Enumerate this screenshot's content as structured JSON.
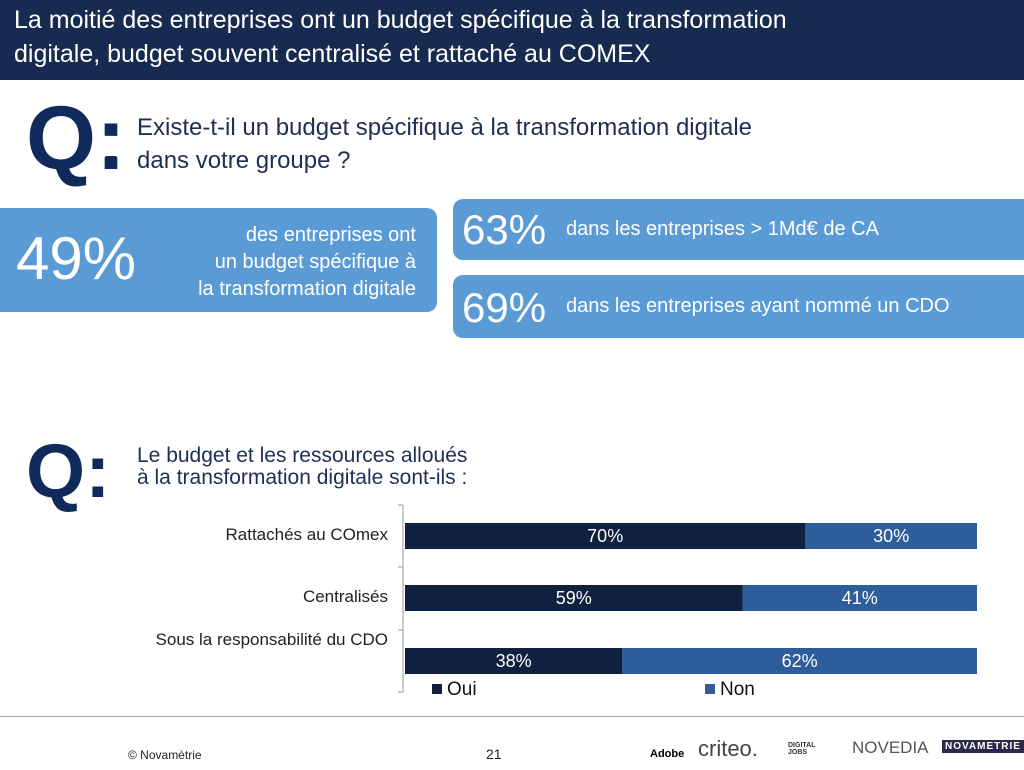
{
  "header": {
    "title_lines": [
      "La moitié des entreprises ont un budget spécifique à la transformation",
      "digitale, budget souvent centralisé et rattaché au COMEX"
    ]
  },
  "question1": {
    "label": "Q:",
    "lines": [
      "Existe-t-il un budget spécifique à la transformation digitale",
      "dans votre groupe ?"
    ]
  },
  "stat_main": {
    "value": "49%",
    "text_lines": [
      "des entreprises ont",
      "un budget spécifique à",
      "la transformation digitale"
    ]
  },
  "stats": [
    {
      "value": "63%",
      "text": "dans les entreprises > 1Md€ de CA"
    },
    {
      "value": "69%",
      "text": "dans les entreprises ayant nommé un CDO"
    }
  ],
  "question2": {
    "label": "Q:",
    "lines": [
      "Le budget et les ressources alloués",
      "à la transformation digitale sont-ils :"
    ]
  },
  "chart_data": {
    "type": "stacked-barh",
    "categories": [
      "Rattachés au COmex",
      "Centralisés",
      "Sous la responsabilité du CDO"
    ],
    "series": [
      {
        "name": "Oui",
        "color": "#0f213f",
        "values": [
          70,
          59,
          38
        ],
        "value_labels": [
          "70%",
          "59%",
          "38%"
        ]
      },
      {
        "name": "Non",
        "color": "#2d5d9b",
        "values": [
          30,
          41,
          62
        ],
        "value_labels": [
          "30%",
          "41%",
          "62%"
        ]
      }
    ],
    "xlim": [
      0,
      100
    ]
  },
  "footer": {
    "copyright": "© Novamètrie",
    "page": "21",
    "logos": [
      "Adobe",
      "criteo.",
      "DIGITAL JOBS",
      "NOVEDIA",
      "NOVAMETRIE"
    ]
  }
}
